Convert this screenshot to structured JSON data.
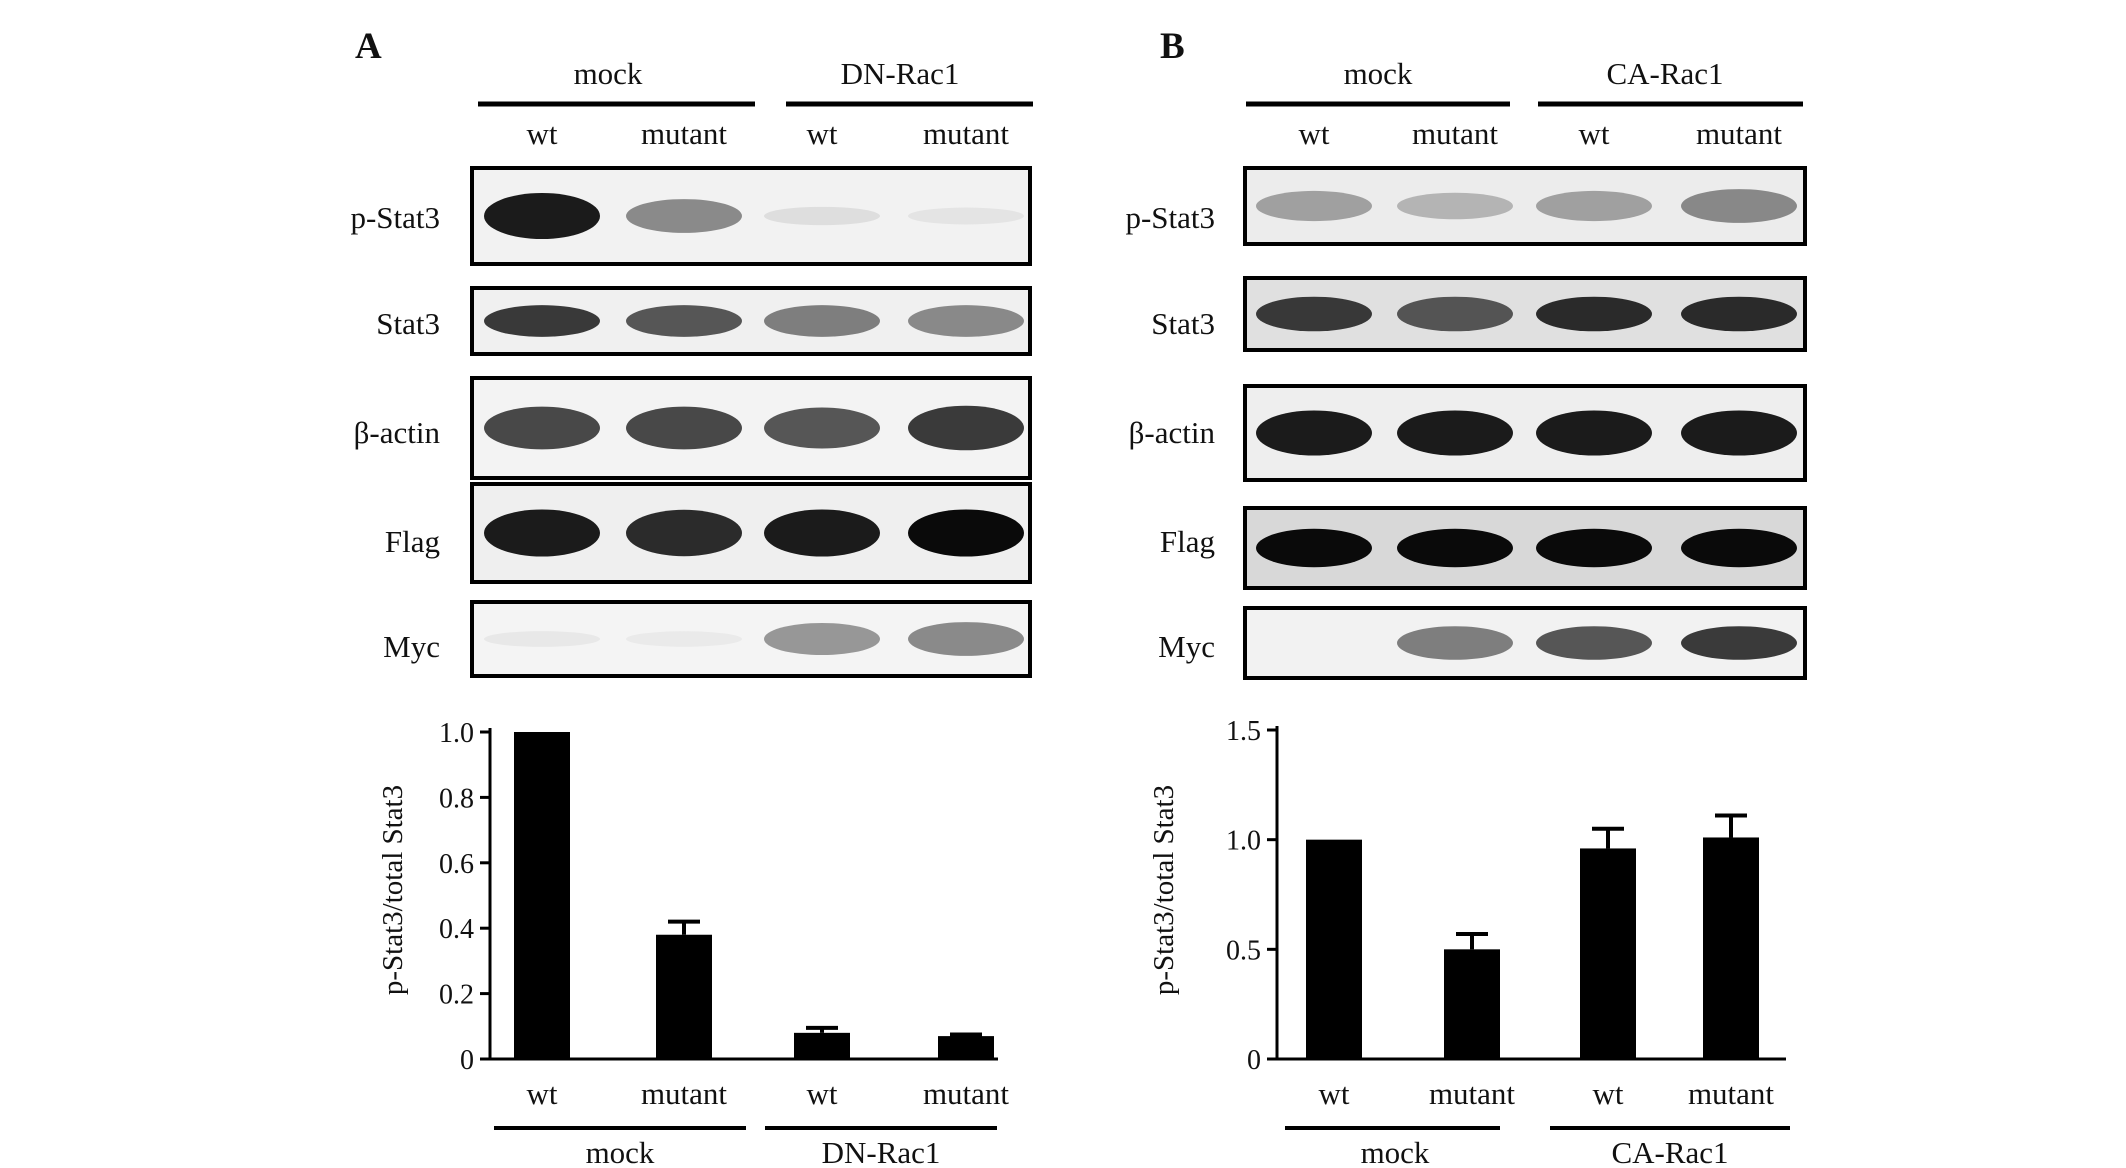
{
  "panels": [
    {
      "letter": "A",
      "blot_groups": [
        "mock",
        "DN-Rac1"
      ],
      "lanes": [
        "wt",
        "mutant",
        "wt",
        "mutant"
      ],
      "rows": [
        "p-Stat3",
        "Stat3",
        "β-actin",
        "Flag",
        "Myc"
      ],
      "band_intensity": [
        [
          0.95,
          0.55,
          0.12,
          0.08
        ],
        [
          0.85,
          0.75,
          0.6,
          0.55
        ],
        [
          0.8,
          0.8,
          0.75,
          0.85
        ],
        [
          0.95,
          0.9,
          0.95,
          1.0
        ],
        [
          0.05,
          0.04,
          0.5,
          0.55
        ]
      ]
    },
    {
      "letter": "B",
      "blot_groups": [
        "mock",
        "CA-Rac1"
      ],
      "lanes": [
        "wt",
        "mutant",
        "wt",
        "mutant"
      ],
      "rows": [
        "p-Stat3",
        "Stat3",
        "β-actin",
        "Flag",
        "Myc"
      ],
      "band_intensity": [
        [
          0.45,
          0.35,
          0.45,
          0.55
        ],
        [
          0.85,
          0.75,
          0.9,
          0.9
        ],
        [
          0.95,
          0.95,
          0.95,
          0.95
        ],
        [
          1.0,
          1.0,
          1.0,
          1.0
        ],
        [
          0.0,
          0.6,
          0.75,
          0.85
        ]
      ]
    }
  ],
  "chart_data": [
    {
      "type": "bar",
      "categories": [
        "wt",
        "mutant",
        "wt",
        "mutant"
      ],
      "groups": [
        "mock",
        "DN-Rac1"
      ],
      "values": [
        1.0,
        0.38,
        0.08,
        0.07
      ],
      "errors": [
        0,
        0.04,
        0.015,
        0.005
      ],
      "ylabel": "p-Stat3/total Stat3",
      "ylim": [
        0,
        1.0
      ],
      "yticks": [
        "0",
        "0.2",
        "0.4",
        "0.6",
        "0.8",
        "1.0"
      ],
      "ytick_values": [
        0,
        0.2,
        0.4,
        0.6,
        0.8,
        1.0
      ],
      "bar_color": "#000000"
    },
    {
      "type": "bar",
      "categories": [
        "wt",
        "mutant",
        "wt",
        "mutant"
      ],
      "groups": [
        "mock",
        "CA-Rac1"
      ],
      "values": [
        1.0,
        0.5,
        0.96,
        1.01
      ],
      "errors": [
        0,
        0.07,
        0.09,
        0.1
      ],
      "ylabel": "p-Stat3/total Stat3",
      "ylim": [
        0,
        1.5
      ],
      "yticks": [
        "0",
        "0.5",
        "1.0",
        "1.5"
      ],
      "ytick_values": [
        0,
        0.5,
        1.0,
        1.5
      ],
      "bar_color": "#000000"
    }
  ]
}
